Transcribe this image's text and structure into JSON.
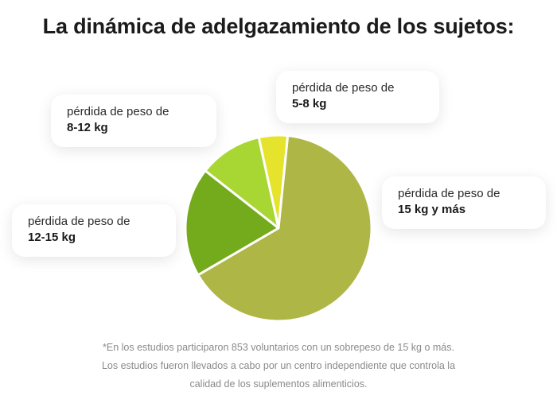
{
  "title": "La dinámica de adelgazamiento de los sujetos:",
  "chart_data": {
    "type": "pie",
    "categories": [
      "5-8 kg",
      "8-12 kg",
      "12-15 kg",
      "15 kg y más"
    ],
    "values": [
      5,
      11,
      19,
      65
    ],
    "colors": [
      "#e6e32c",
      "#a8d633",
      "#74ab1c",
      "#aeb645"
    ],
    "annotations": [
      {
        "id": "5-8",
        "line1": "pérdida de peso de",
        "line2": "5-8 kg"
      },
      {
        "id": "8-12",
        "line1": "pérdida de peso de",
        "line2": "8-12 kg"
      },
      {
        "id": "12-15",
        "line1": "pérdida de peso de",
        "line2": "12-15 kg"
      },
      {
        "id": "15+",
        "line1": "pérdida de peso de",
        "line2": "15 kg y más"
      }
    ]
  },
  "footnote": "*En los estudios participaron 853 voluntarios con un sobrepeso de 15 kg o más. Los estudios fueron llevados a cabo por un centro independiente que controla la calidad de los suplementos alimenticios."
}
